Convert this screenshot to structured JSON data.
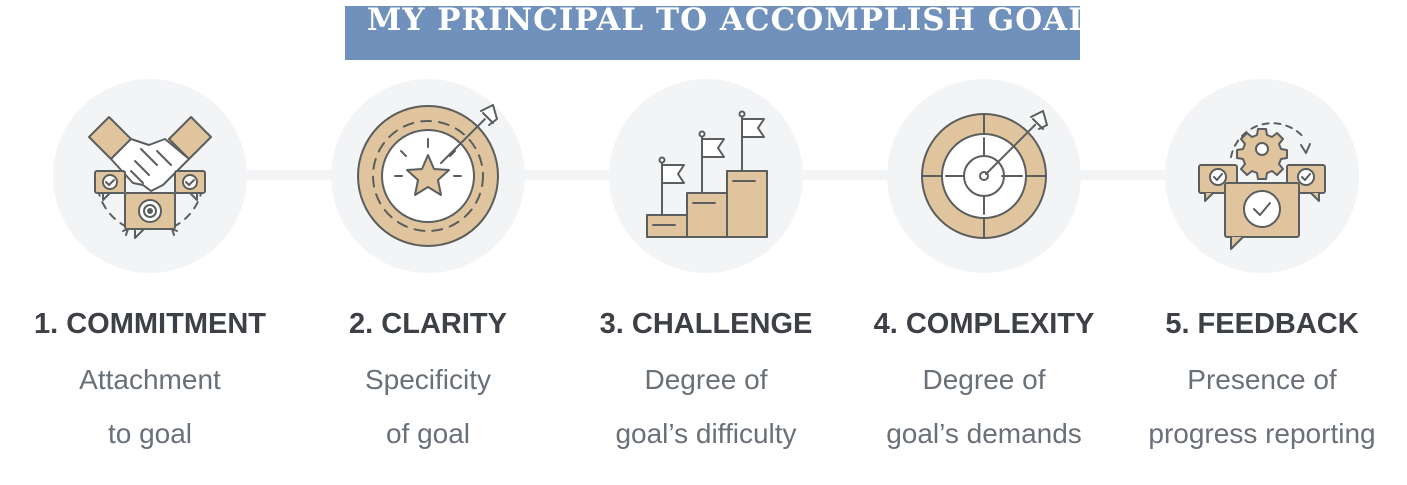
{
  "title": "MY PRINCIPAL TO ACCOMPLISH GOAL",
  "colors": {
    "banner": "#7191bd",
    "circle_bg": "#f3f4f6",
    "tan_fill": "#dfc49d",
    "stroke": "#5b5e5e",
    "heading_text": "#3d4045",
    "body_text": "#6a7077"
  },
  "steps": [
    {
      "title": "1. COMMITMENT",
      "line1": "Attachment",
      "line2": "to goal",
      "icon": "handshake-target-icon"
    },
    {
      "title": "2. CLARITY",
      "line1": "Specificity",
      "line2": "of goal",
      "icon": "star-target-arrow-icon"
    },
    {
      "title": "3. CHALLENGE",
      "line1": "Degree of",
      "line2": "goal’s difficulty",
      "icon": "podium-flags-icon"
    },
    {
      "title": "4. COMPLEXITY",
      "line1": "Degree of",
      "line2": "goal’s demands",
      "icon": "segmented-target-arrow-icon"
    },
    {
      "title": "5. FEEDBACK",
      "line1": "Presence of",
      "line2": "progress reporting",
      "icon": "feedback-gear-checks-icon"
    }
  ]
}
